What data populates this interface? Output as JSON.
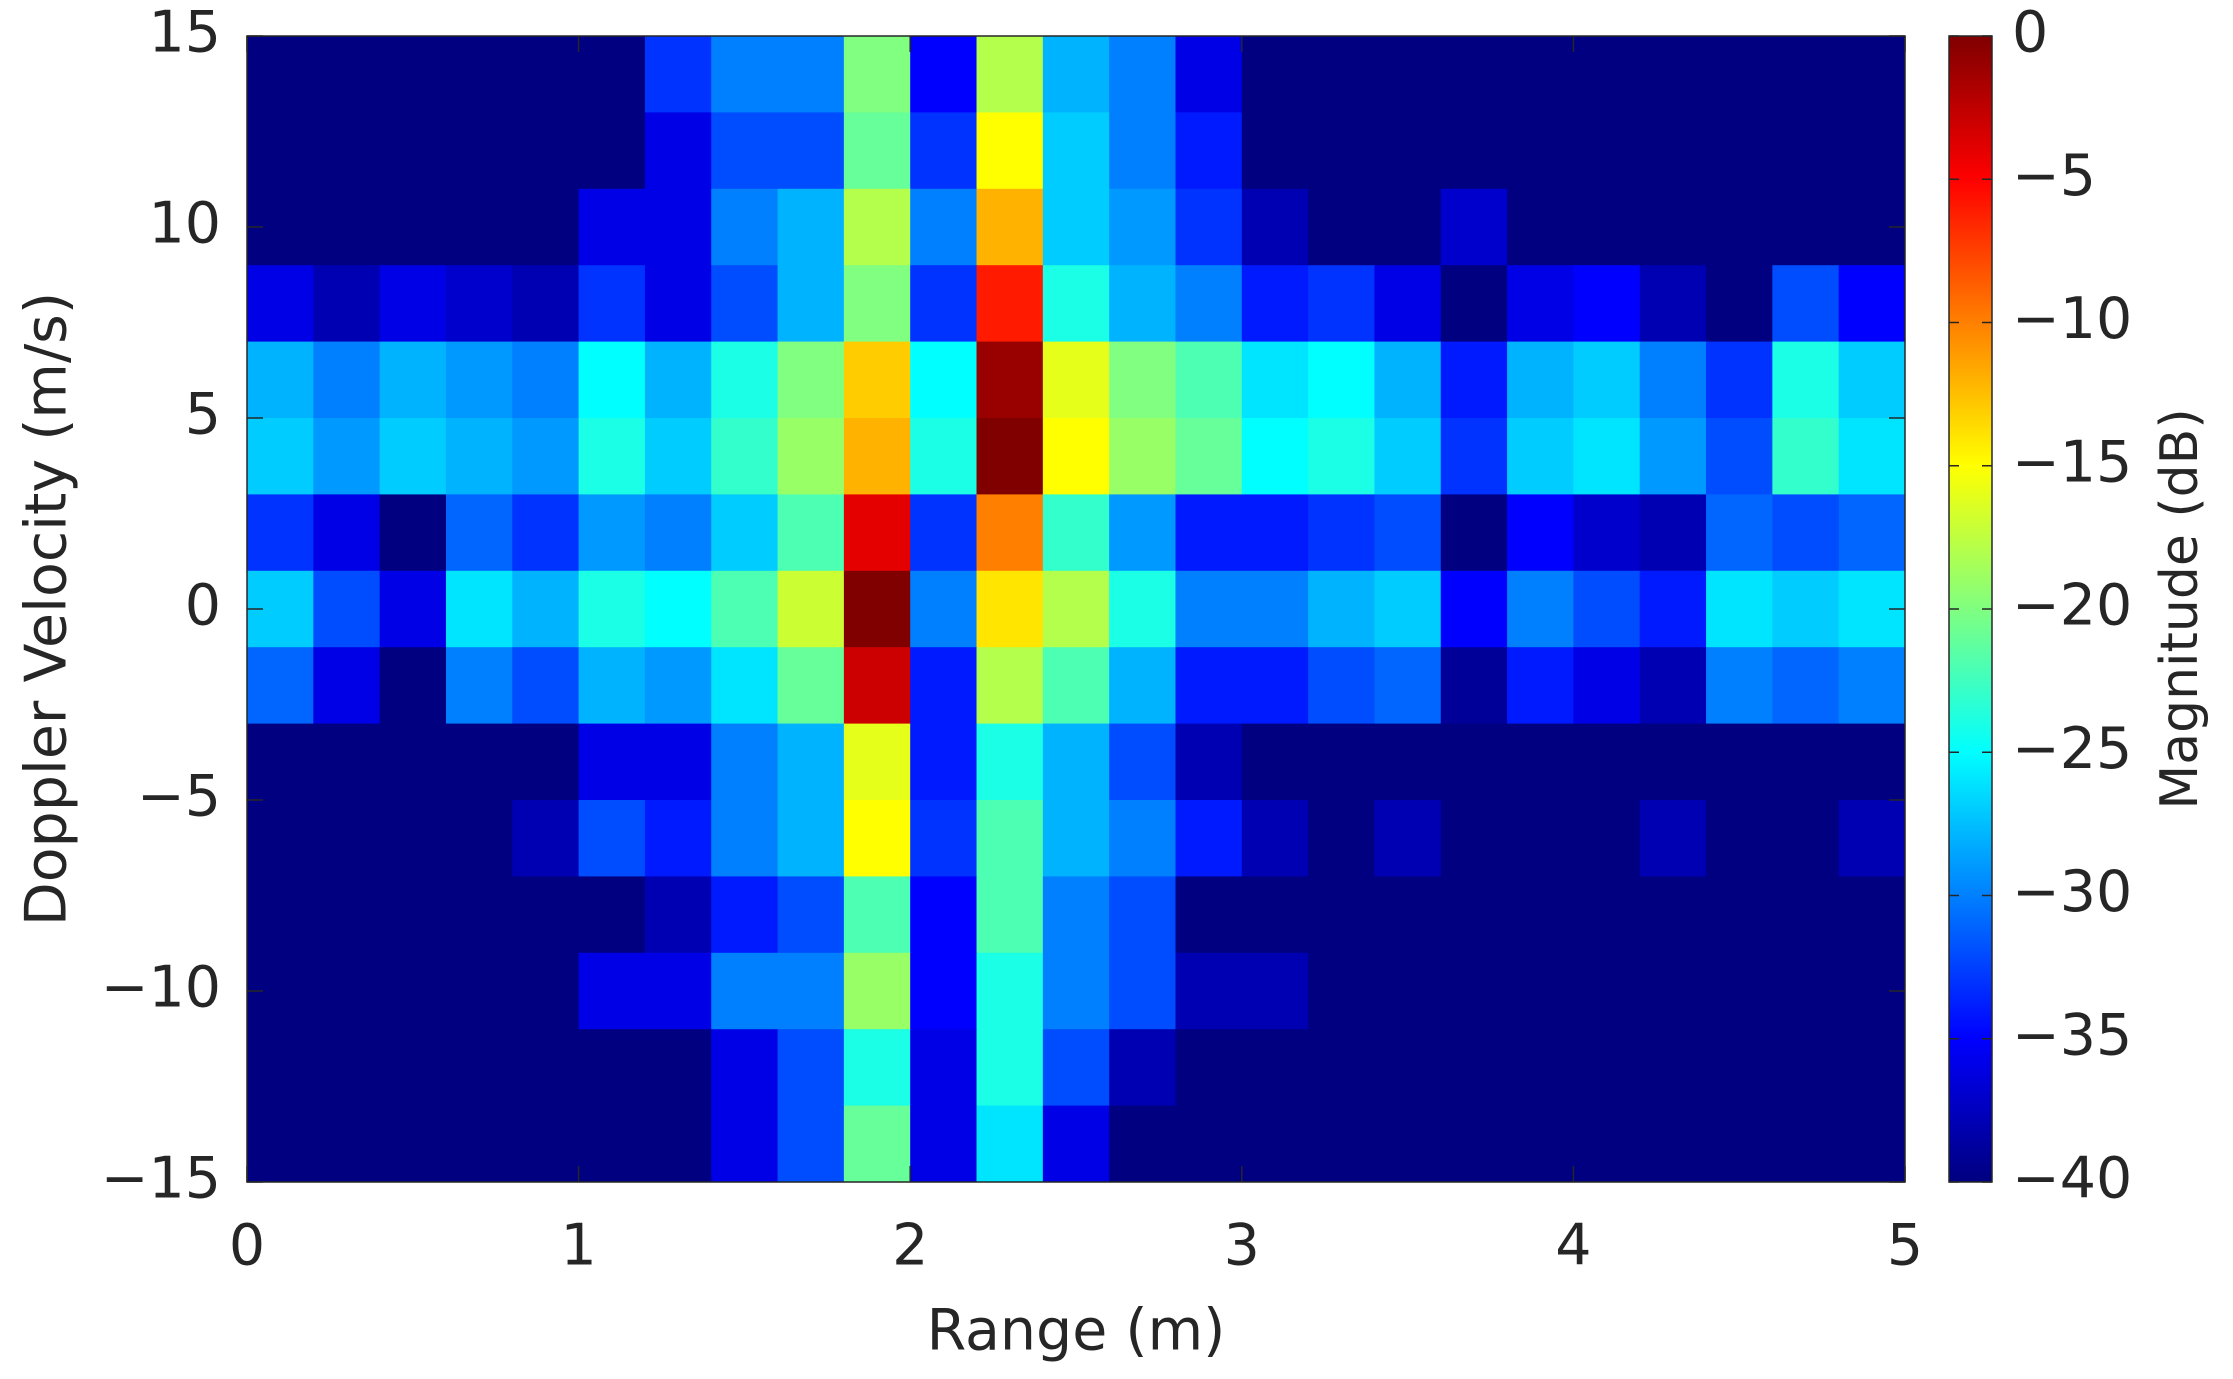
{
  "chart_data": {
    "type": "heatmap",
    "xlabel": "Range (m)",
    "ylabel": "Doppler Velocity (m/s)",
    "colorbar_label": "Magnitude (dB)",
    "colormap": "jet",
    "x": [
      0.1,
      0.3,
      0.5,
      0.7,
      0.9,
      1.1,
      1.3,
      1.5,
      1.7,
      1.9,
      2.1,
      2.3,
      2.5,
      2.7,
      2.9,
      3.1,
      3.3,
      3.5,
      3.7,
      3.9,
      4.1,
      4.3,
      4.5,
      4.7,
      4.9
    ],
    "y": [
      14,
      12,
      10,
      8,
      6,
      4,
      2,
      0,
      -2,
      -4,
      -6,
      -8,
      -10,
      -12,
      -14
    ],
    "z": [
      [
        -40,
        -40,
        -40,
        -40,
        -40,
        -40,
        -33,
        -30,
        -30,
        -20,
        -35,
        -18,
        -28,
        -30,
        -36,
        -40,
        -40,
        -40,
        -40,
        -40,
        -40,
        -40,
        -40,
        -40,
        -40
      ],
      [
        -40,
        -40,
        -40,
        -40,
        -40,
        -40,
        -36,
        -32,
        -32,
        -21,
        -33,
        -15,
        -27,
        -30,
        -34,
        -40,
        -40,
        -40,
        -40,
        -40,
        -40,
        -40,
        -40,
        -40,
        -40
      ],
      [
        -40,
        -40,
        -40,
        -40,
        -40,
        -36,
        -36,
        -30,
        -28,
        -18,
        -30,
        -12,
        -27,
        -29,
        -33,
        -38,
        -40,
        -40,
        -37,
        -40,
        -40,
        -40,
        -40,
        -40,
        -40
      ],
      [
        -36,
        -38,
        -36,
        -37,
        -38,
        -33,
        -36,
        -32,
        -28,
        -20,
        -33,
        -6,
        -24,
        -28,
        -30,
        -34,
        -33,
        -36,
        -40,
        -36,
        -35,
        -38,
        -40,
        -32,
        -35
      ],
      [
        -28,
        -30,
        -28,
        -29,
        -30,
        -25,
        -28,
        -24,
        -20,
        -13,
        -25,
        -1,
        -16,
        -20,
        -22,
        -26,
        -25,
        -28,
        -34,
        -28,
        -27,
        -30,
        -33,
        -24,
        -27
      ],
      [
        -27,
        -29,
        -27,
        -28,
        -29,
        -24,
        -27,
        -23,
        -19,
        -12,
        -24,
        0,
        -15,
        -19,
        -21,
        -25,
        -24,
        -27,
        -33,
        -27,
        -26,
        -29,
        -32,
        -23,
        -26
      ],
      [
        -33,
        -36,
        -40,
        -31,
        -33,
        -29,
        -30,
        -27,
        -22,
        -4,
        -33,
        -10,
        -23,
        -29,
        -34,
        -34,
        -33,
        -32,
        -40,
        -35,
        -37,
        -38,
        -31,
        -32,
        -31
      ],
      [
        -27,
        -32,
        -36,
        -26,
        -28,
        -24,
        -25,
        -22,
        -17,
        0,
        -30,
        -14,
        -18,
        -24,
        -30,
        -30,
        -28,
        -27,
        -35,
        -30,
        -32,
        -34,
        -26,
        -27,
        -26
      ],
      [
        -31,
        -36,
        -40,
        -30,
        -32,
        -28,
        -29,
        -26,
        -21,
        -3,
        -34,
        -18,
        -22,
        -28,
        -34,
        -34,
        -32,
        -31,
        -39,
        -34,
        -36,
        -38,
        -30,
        -31,
        -30
      ],
      [
        -40,
        -40,
        -40,
        -40,
        -40,
        -36,
        -36,
        -30,
        -28,
        -16,
        -34,
        -24,
        -28,
        -32,
        -38,
        -40,
        -40,
        -40,
        -40,
        -40,
        -40,
        -40,
        -40,
        -40,
        -40
      ],
      [
        -40,
        -40,
        -40,
        -40,
        -38,
        -32,
        -34,
        -30,
        -28,
        -15,
        -33,
        -22,
        -28,
        -30,
        -34,
        -38,
        -40,
        -38,
        -40,
        -40,
        -40,
        -38,
        -40,
        -40,
        -38
      ],
      [
        -40,
        -40,
        -40,
        -40,
        -40,
        -40,
        -38,
        -34,
        -32,
        -22,
        -35,
        -22,
        -30,
        -32,
        -40,
        -40,
        -40,
        -40,
        -40,
        -40,
        -40,
        -40,
        -40,
        -40,
        -40
      ],
      [
        -40,
        -40,
        -40,
        -40,
        -40,
        -36,
        -36,
        -30,
        -30,
        -19,
        -35,
        -24,
        -30,
        -32,
        -38,
        -38,
        -40,
        -40,
        -40,
        -40,
        -40,
        -40,
        -40,
        -40,
        -40
      ],
      [
        -40,
        -40,
        -40,
        -40,
        -40,
        -40,
        -40,
        -36,
        -32,
        -24,
        -36,
        -24,
        -32,
        -38,
        -40,
        -40,
        -40,
        -40,
        -40,
        -40,
        -40,
        -40,
        -40,
        -40,
        -40
      ],
      [
        -40,
        -40,
        -40,
        -40,
        -40,
        -40,
        -40,
        -36,
        -32,
        -21,
        -36,
        -26,
        -36,
        -40,
        -40,
        -40,
        -40,
        -40,
        -40,
        -40,
        -40,
        -40,
        -40,
        -40,
        -40
      ]
    ],
    "xlim": [
      0,
      5
    ],
    "ylim": [
      -15,
      15
    ],
    "zlim": [
      -40,
      0
    ],
    "xticks": [
      0,
      1,
      2,
      3,
      4,
      5
    ],
    "yticks": [
      {
        "value": -15,
        "label": "−15"
      },
      {
        "value": -10,
        "label": "−10"
      },
      {
        "value": -5,
        "label": "−5"
      },
      0,
      5,
      10,
      15
    ],
    "zticks": [
      0,
      {
        "value": -5,
        "label": "−5"
      },
      {
        "value": -10,
        "label": "−10"
      },
      {
        "value": -15,
        "label": "−15"
      },
      {
        "value": -20,
        "label": "−20"
      },
      {
        "value": -25,
        "label": "−25"
      },
      {
        "value": -30,
        "label": "−30"
      },
      {
        "value": -35,
        "label": "−35"
      },
      {
        "value": -40,
        "label": "−40"
      }
    ]
  }
}
